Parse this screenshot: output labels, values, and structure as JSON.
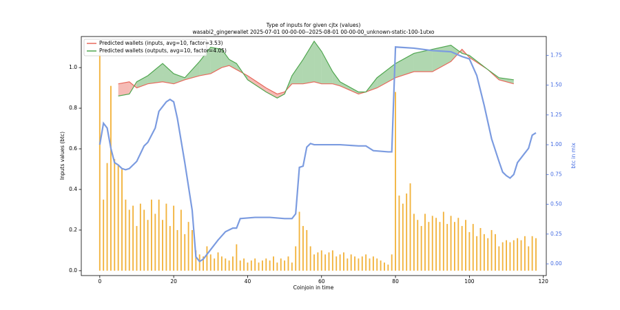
{
  "chart_data": {
    "type": "line",
    "title": "Type of inputs for given cjtx (values)",
    "subtitle": "wasabi2_gingerwallet 2025-07-01 00-00-00--2025-08-01 00-00-00_unknown-static-100-1utxo",
    "xlabel": "Coinjoin in time",
    "ylabel": "Inputs values (btc)",
    "y2label": "btc in mix",
    "xlim": [
      -5,
      120.8
    ],
    "xticks": [
      0,
      20,
      40,
      60,
      80,
      100,
      120
    ],
    "ylim": [
      -0.024,
      1.153
    ],
    "yticks": [
      {
        "value": 0,
        "label": "0.0"
      },
      0.2,
      0.4,
      0.6,
      0.8,
      {
        "value": 1,
        "label": "1.0"
      }
    ],
    "y2lim": [
      -0.098,
      1.908
    ],
    "y2ticks": [
      {
        "value": 0,
        "label": "0.00"
      },
      {
        "value": 0.25,
        "label": "0.25"
      },
      {
        "value": 0.5,
        "label": "0.50"
      },
      {
        "value": 0.75,
        "label": "0.75"
      },
      {
        "value": 1,
        "label": "1.00"
      },
      {
        "value": 1.25,
        "label": "1.25"
      },
      {
        "value": 1.5,
        "label": "1.50"
      },
      {
        "value": 1.75,
        "label": "1.75"
      }
    ],
    "legend": "upper left",
    "x": [
      5,
      8,
      10,
      13,
      17,
      20,
      23,
      27,
      30,
      33,
      35,
      37,
      40,
      45,
      48,
      50,
      52,
      55,
      58,
      60,
      63,
      65,
      70,
      72,
      75,
      80,
      85,
      90,
      95,
      98,
      100,
      105,
      108,
      112
    ],
    "series": [
      {
        "name": "Predicted wallets (inputs, avg=10, factor=3.53)",
        "color": "#e8685c",
        "values": [
          0.92,
          0.93,
          0.9,
          0.92,
          0.93,
          0.92,
          0.94,
          0.96,
          0.97,
          1.0,
          1.01,
          0.99,
          0.96,
          0.9,
          0.87,
          0.88,
          0.92,
          0.92,
          0.93,
          0.92,
          0.92,
          0.91,
          0.87,
          0.88,
          0.9,
          0.95,
          0.98,
          0.98,
          1.03,
          1.09,
          1.05,
          0.99,
          0.94,
          0.92
        ]
      },
      {
        "name": "Predicted wallets (outputs, avg=10, factor=4.05)",
        "color": "#4fa64f",
        "values": [
          0.86,
          0.87,
          0.93,
          0.96,
          1.02,
          0.97,
          0.95,
          1.03,
          1.1,
          1.09,
          1.04,
          1.02,
          0.94,
          0.88,
          0.85,
          0.87,
          0.96,
          1.04,
          1.13,
          1.08,
          0.98,
          0.93,
          0.88,
          0.88,
          0.95,
          1.02,
          1.07,
          1.09,
          1.11,
          1.07,
          1.06,
          0.99,
          0.95,
          0.94
        ]
      }
    ],
    "mix_line": {
      "color": "#7b9be0",
      "axis": "y2",
      "x": [
        0,
        1,
        2,
        3,
        4,
        5,
        6,
        7,
        8,
        10,
        12,
        13,
        15,
        16,
        18,
        19,
        20,
        21,
        23,
        25,
        26,
        27,
        28,
        30,
        32,
        34,
        36,
        37,
        38,
        42,
        46,
        50,
        52,
        53,
        54,
        55,
        56,
        57,
        58,
        65,
        70,
        72,
        74,
        78,
        79,
        80,
        85,
        90,
        95,
        98,
        100,
        102,
        104,
        106,
        108,
        109,
        110,
        111,
        112,
        113,
        116,
        117,
        118
      ],
      "values": [
        1.0,
        1.18,
        1.14,
        0.97,
        0.85,
        0.83,
        0.8,
        0.79,
        0.8,
        0.86,
        0.99,
        1.02,
        1.14,
        1.28,
        1.36,
        1.38,
        1.36,
        1.22,
        0.85,
        0.45,
        0.06,
        0.02,
        0.04,
        0.12,
        0.2,
        0.27,
        0.3,
        0.3,
        0.38,
        0.39,
        0.39,
        0.38,
        0.38,
        0.42,
        0.81,
        0.82,
        0.98,
        1.01,
        1.0,
        1.0,
        0.99,
        0.99,
        0.95,
        0.94,
        0.94,
        1.82,
        1.81,
        1.79,
        1.78,
        1.74,
        1.72,
        1.58,
        1.33,
        1.05,
        0.86,
        0.77,
        0.74,
        0.72,
        0.75,
        0.85,
        0.97,
        1.08,
        1.1
      ]
    },
    "bars": {
      "color": "#f2b33d",
      "x": [
        0,
        1,
        2,
        3,
        4,
        5,
        6,
        7,
        8,
        9,
        10,
        11,
        12,
        13,
        14,
        15,
        16,
        17,
        18,
        19,
        20,
        21,
        22,
        23,
        24,
        25,
        26,
        27,
        28,
        29,
        30,
        31,
        32,
        33,
        34,
        35,
        36,
        37,
        38,
        39,
        40,
        41,
        42,
        43,
        44,
        45,
        46,
        47,
        48,
        49,
        50,
        51,
        52,
        53,
        54,
        55,
        56,
        57,
        58,
        59,
        60,
        61,
        62,
        63,
        64,
        65,
        66,
        67,
        68,
        69,
        70,
        71,
        72,
        73,
        74,
        75,
        76,
        77,
        78,
        79,
        80,
        81,
        82,
        83,
        84,
        85,
        86,
        87,
        88,
        89,
        90,
        91,
        92,
        93,
        94,
        95,
        96,
        97,
        98,
        99,
        100,
        101,
        102,
        103,
        104,
        105,
        106,
        107,
        108,
        109,
        110,
        111,
        112,
        113,
        114,
        115,
        116,
        117,
        118
      ],
      "values": [
        1.07,
        0.35,
        0.53,
        0.91,
        0.55,
        0.52,
        0.5,
        0.35,
        0.3,
        0.32,
        0.22,
        0.33,
        0.3,
        0.25,
        0.35,
        0.28,
        0.35,
        0.25,
        0.33,
        0.22,
        0.32,
        0.2,
        0.3,
        0.18,
        0.24,
        0.2,
        0.1,
        0.08,
        0.07,
        0.12,
        0.08,
        0.06,
        0.09,
        0.07,
        0.06,
        0.05,
        0.07,
        0.13,
        0.05,
        0.06,
        0.04,
        0.05,
        0.06,
        0.04,
        0.05,
        0.06,
        0.05,
        0.07,
        0.04,
        0.06,
        0.05,
        0.07,
        0.04,
        0.12,
        0.29,
        0.22,
        0.2,
        0.12,
        0.08,
        0.09,
        0.1,
        0.08,
        0.09,
        0.1,
        0.07,
        0.08,
        0.09,
        0.06,
        0.08,
        0.07,
        0.06,
        0.07,
        0.08,
        0.06,
        0.07,
        0.06,
        0.05,
        0.04,
        0.03,
        0.08,
        0.88,
        0.37,
        0.33,
        0.38,
        0.43,
        0.28,
        0.25,
        0.22,
        0.28,
        0.24,
        0.27,
        0.26,
        0.24,
        0.29,
        0.23,
        0.27,
        0.24,
        0.26,
        0.22,
        0.25,
        0.19,
        0.23,
        0.17,
        0.21,
        0.18,
        0.16,
        0.2,
        0.18,
        0.12,
        0.14,
        0.15,
        0.14,
        0.15,
        0.16,
        0.15,
        0.17,
        0.12,
        0.17,
        0.16
      ]
    }
  }
}
